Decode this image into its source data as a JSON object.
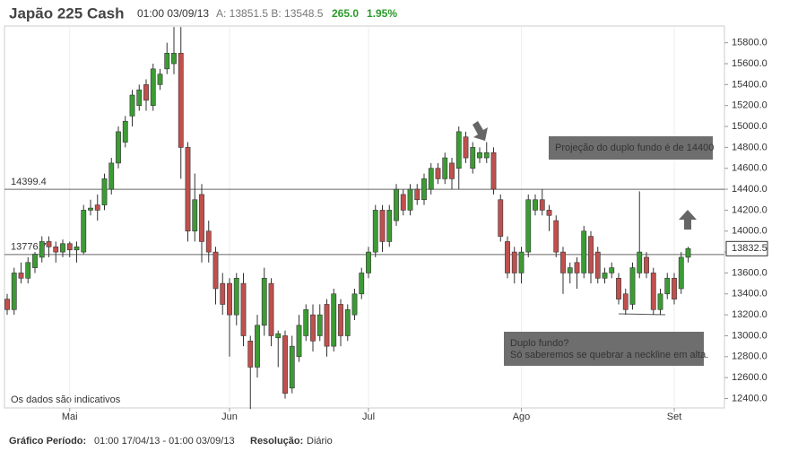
{
  "header": {
    "title": "Japão 225 Cash",
    "time": "01:00 03/09/13",
    "bid_ask": "A: 13851.5 B: 13548.5",
    "change": "265.0",
    "change_pct": "1.95%"
  },
  "footer": {
    "period_label": "Gráfico Período:",
    "period": "01:00 17/04/13 - 01:00 03/09/13",
    "resolution_label": "Resolução:",
    "resolution": "Diário"
  },
  "chart_data": {
    "type": "candlestick",
    "disclaimer": "Os dados são indicativos",
    "up_color": "#3d9b35",
    "down_color": "#c0504d",
    "open": [
      13350,
      13250,
      13600,
      13550,
      13650,
      13750,
      13900,
      13850,
      13800,
      13880,
      13820,
      13800,
      14200,
      14250,
      14250,
      14400,
      14650,
      14850,
      15100,
      15200,
      15400,
      15200,
      15400,
      15550,
      15600,
      15700,
      14800,
      14000,
      14350,
      14000,
      13800,
      13500,
      13500,
      13200,
      13500,
      12950,
      12700,
      13100,
      13500,
      12980,
      13000,
      12500,
      12800,
      13000,
      13200,
      13000,
      13300,
      12900,
      13300,
      13000,
      13200,
      13400,
      13600,
      13800,
      14200,
      13900,
      14100,
      14350,
      14200,
      14400,
      14300,
      14400,
      14600,
      14500,
      14650,
      14600,
      14900,
      14600,
      14700,
      14700,
      14750,
      14300,
      13900,
      13800,
      13600,
      13800,
      14200,
      14300,
      14200,
      14100,
      13800,
      13600,
      13700,
      13600,
      13950,
      13800,
      13550,
      13600,
      13550,
      13400,
      13300,
      13600,
      13750,
      13600,
      13250,
      13400,
      13550,
      13450,
      13750
    ],
    "high": [
      13400,
      13650,
      13700,
      13750,
      13800,
      13950,
      13950,
      13900,
      13920,
      13900,
      13900,
      14250,
      14300,
      14350,
      14550,
      14700,
      15000,
      15100,
      15350,
      15400,
      15450,
      15600,
      15550,
      15800,
      15950,
      15950,
      14850,
      14550,
      14450,
      14100,
      13850,
      13600,
      13550,
      13600,
      13600,
      13000,
      13200,
      13650,
      13550,
      13050,
      13050,
      13000,
      13200,
      13300,
      13300,
      13300,
      13350,
      13450,
      13350,
      13300,
      13450,
      13650,
      13850,
      14250,
      14250,
      14250,
      14450,
      14400,
      14450,
      14450,
      14550,
      14650,
      14650,
      14750,
      14700,
      15000,
      14950,
      14850,
      14800,
      14850,
      14800,
      14350,
      13950,
      13850,
      13850,
      14350,
      14350,
      14400,
      14250,
      14150,
      13850,
      13700,
      13750,
      14050,
      14000,
      13850,
      13650,
      13700,
      13600,
      13450,
      13700,
      14380,
      13800,
      13650,
      13450,
      13600,
      13600,
      13800,
      13850
    ],
    "low": [
      13200,
      13200,
      13500,
      13500,
      13600,
      13700,
      13750,
      13700,
      13750,
      13750,
      13700,
      13780,
      14150,
      14100,
      14200,
      14350,
      14600,
      14800,
      15000,
      15150,
      15150,
      15150,
      15350,
      15500,
      15500,
      14500,
      13900,
      13900,
      13700,
      13700,
      13300,
      13200,
      12800,
      13100,
      12900,
      12300,
      12600,
      13000,
      12900,
      12700,
      12400,
      12450,
      12750,
      12950,
      12850,
      12950,
      12800,
      12850,
      12900,
      12950,
      13150,
      13350,
      13550,
      13750,
      13800,
      13850,
      14050,
      14150,
      14150,
      14250,
      14250,
      14350,
      14450,
      14450,
      14400,
      14400,
      14650,
      14550,
      14650,
      14650,
      14350,
      13900,
      13550,
      13500,
      13500,
      13750,
      14150,
      14150,
      14000,
      13750,
      13400,
      13500,
      13450,
      13550,
      13500,
      13500,
      13500,
      13550,
      13300,
      13200,
      13250,
      13550,
      13550,
      13200,
      13200,
      13350,
      13300,
      13400,
      13700
    ],
    "close": [
      13250,
      13600,
      13550,
      13700,
      13780,
      13900,
      13850,
      13800,
      13880,
      13820,
      13850,
      14200,
      14220,
      14200,
      14500,
      14650,
      14950,
      15050,
      15300,
      15350,
      15250,
      15550,
      15500,
      15700,
      15700,
      14800,
      14000,
      14300,
      13900,
      13800,
      13450,
      13300,
      13200,
      13550,
      13000,
      12700,
      13100,
      13550,
      13000,
      13020,
      12450,
      12900,
      13100,
      13250,
      12950,
      13200,
      12900,
      13400,
      13000,
      13250,
      13400,
      13600,
      13800,
      14200,
      13900,
      14200,
      14400,
      14200,
      14400,
      14300,
      14500,
      14600,
      14500,
      14700,
      14500,
      14950,
      14700,
      14800,
      14750,
      14750,
      14400,
      13950,
      13600,
      13600,
      13800,
      14300,
      14300,
      14200,
      14150,
      13800,
      13600,
      13650,
      13600,
      14000,
      13600,
      13550,
      13600,
      13650,
      13350,
      13250,
      13650,
      13800,
      13600,
      13250,
      13400,
      13550,
      13350,
      13750,
      13832.5
    ],
    "xticks": [
      {
        "value": 9,
        "label": "Mai"
      },
      {
        "value": 32,
        "label": "Jun"
      },
      {
        "value": 52,
        "label": "Jul"
      },
      {
        "value": 74,
        "label": "Ago"
      },
      {
        "value": 96,
        "label": "Set"
      }
    ],
    "ylim": [
      12310,
      15960
    ],
    "yticks": [
      {
        "value": 12400,
        "label": "12400.0"
      },
      {
        "value": 12600,
        "label": "12600.0"
      },
      {
        "value": 12800,
        "label": "12800.0"
      },
      {
        "value": 13000,
        "label": "13000.0"
      },
      {
        "value": 13200,
        "label": "13200.0"
      },
      {
        "value": 13400,
        "label": "13400.0"
      },
      {
        "value": 13600,
        "label": "13600.0"
      },
      {
        "value": 13800,
        "label": "13800.0"
      },
      {
        "value": 14000,
        "label": "14000.0"
      },
      {
        "value": 14200,
        "label": "14200.0"
      },
      {
        "value": 14400,
        "label": "14400.0"
      },
      {
        "value": 14600,
        "label": "14600.0"
      },
      {
        "value": 14800,
        "label": "14800.0"
      },
      {
        "value": 15000,
        "label": "15000.0"
      },
      {
        "value": 15200,
        "label": "15200.0"
      },
      {
        "value": 15400,
        "label": "15400.0"
      },
      {
        "value": 15600,
        "label": "15600.0"
      },
      {
        "value": 15800,
        "label": "15800.0"
      }
    ],
    "levels": [
      14399.4,
      13776.7
    ],
    "annotations": [
      {
        "lines": [
          "Projeção do duplo fundo é de 14400"
        ]
      },
      {
        "lines": [
          "Duplo fundo?",
          "Só saberemos se quebrar a neckline em alta."
        ]
      }
    ]
  }
}
